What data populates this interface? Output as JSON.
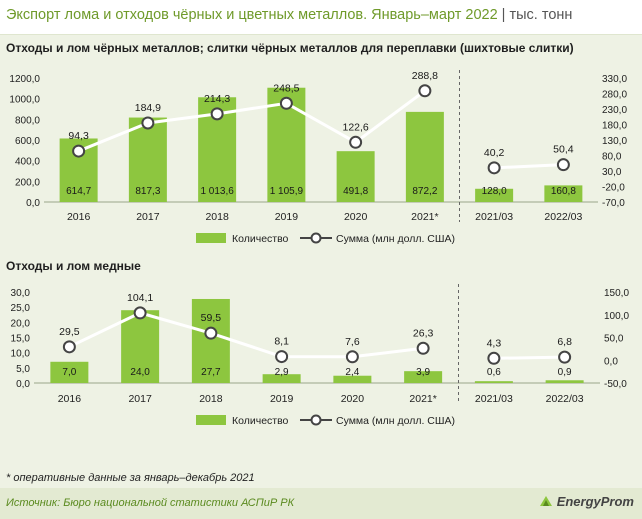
{
  "header": {
    "title": "Экспорт лома и отходов чёрных и цветных металлов. Январь–март 2022",
    "unit": "тыс. тонн"
  },
  "footnote": "* оперативные данные за январь–декабрь 2021",
  "footer": {
    "source": "Источник: Бюро национальной статистики АСПиР РК",
    "logo": "EnergyProm"
  },
  "colors": {
    "bar": "#8dc63f",
    "line": "#ffffff",
    "line_stroke": "#555555",
    "title": "#6f9a2a"
  },
  "chart_data": [
    {
      "type": "bar+line",
      "title": "Отходы и лом чёрных металлов; слитки чёрных металлов для переплавки (шихтовые слитки)",
      "categories": [
        "2016",
        "2017",
        "2018",
        "2019",
        "2020",
        "2021*",
        "2021/03",
        "2022/03"
      ],
      "bar_labels": [
        "614,7",
        "817,3",
        "1 013,6",
        "1 105,9",
        "491,8",
        "872,2",
        "128,0",
        "160,8"
      ],
      "line_labels": [
        "94,3",
        "184,9",
        "214,3",
        "248,5",
        "122,6",
        "288,8",
        "40,2",
        "50,4"
      ],
      "series": [
        {
          "name": "Количество",
          "axis": "left",
          "values": [
            614.7,
            817.3,
            1013.6,
            1105.9,
            491.8,
            872.2,
            128.0,
            160.8
          ]
        },
        {
          "name": "Сумма (млн долл. США)",
          "axis": "right",
          "values": [
            94.3,
            184.9,
            214.3,
            248.5,
            122.6,
            288.8,
            40.2,
            50.4
          ]
        }
      ],
      "left_axis": {
        "min": 0,
        "max": 1200,
        "ticks": [
          "0,0",
          "200,0",
          "400,0",
          "600,0",
          "800,0",
          "1000,0",
          "1200,0"
        ]
      },
      "right_axis": {
        "min": -70,
        "max": 330,
        "ticks": [
          "-70,0",
          "-20,0",
          "30,0",
          "80,0",
          "130,0",
          "180,0",
          "230,0",
          "280,0",
          "330,0"
        ]
      },
      "divider_after": "2021*",
      "legend": [
        "Количество",
        "Сумма (млн долл. США)"
      ],
      "legend_position": "bottom"
    },
    {
      "type": "bar+line",
      "title": "Отходы и лом медные",
      "categories": [
        "2016",
        "2017",
        "2018",
        "2019",
        "2020",
        "2021*",
        "2021/03",
        "2022/03"
      ],
      "bar_labels": [
        "7,0",
        "24,0",
        "27,7",
        "2,9",
        "2,4",
        "3,9",
        "0,6",
        "0,9"
      ],
      "line_labels": [
        "29,5",
        "104,1",
        "59,5",
        "8,1",
        "7,6",
        "26,3",
        "4,3",
        "6,8"
      ],
      "series": [
        {
          "name": "Количество",
          "axis": "left",
          "values": [
            7.0,
            24.0,
            27.7,
            2.9,
            2.4,
            3.9,
            0.6,
            0.9
          ]
        },
        {
          "name": "Сумма (млн долл. США)",
          "axis": "right",
          "values": [
            29.5,
            104.1,
            59.5,
            8.1,
            7.6,
            26.3,
            4.3,
            6.8
          ]
        }
      ],
      "left_axis": {
        "min": 0,
        "max": 30,
        "ticks": [
          "0,0",
          "5,0",
          "10,0",
          "15,0",
          "20,0",
          "25,0",
          "30,0"
        ]
      },
      "right_axis": {
        "min": -50,
        "max": 150,
        "ticks": [
          "-50,0",
          "0,0",
          "50,0",
          "100,0",
          "150,0"
        ]
      },
      "divider_after": "2021*",
      "legend": [
        "Количество",
        "Сумма (млн долл. США)"
      ],
      "legend_position": "bottom"
    }
  ]
}
